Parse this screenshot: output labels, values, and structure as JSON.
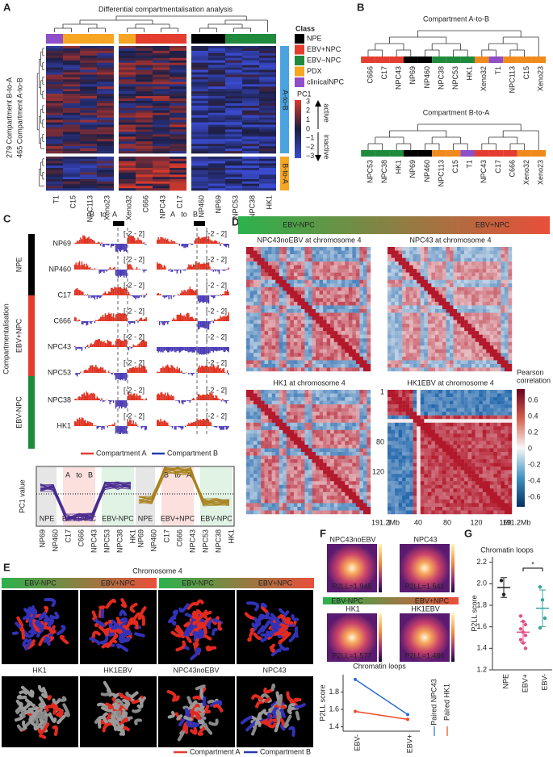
{
  "panel_labels": [
    "A",
    "B",
    "C",
    "D",
    "E",
    "F",
    "G"
  ],
  "a": {
    "title": "Differential compartmentalisation analysis",
    "row_groups": [
      "279 Compartment B-to-A",
      "465 Compartment A-to-B"
    ],
    "columns": [
      "T1",
      "C15",
      "NPC113",
      "Xeno23",
      "Xeno32",
      "C666",
      "NPC43",
      "C17",
      "NP460",
      "NP69",
      "NPC53",
      "NPC38",
      "HK1"
    ],
    "right_labels": [
      "A-to-B",
      "B-to-A"
    ],
    "legend_title": "Class",
    "classes": [
      {
        "name": "NPE",
        "color": "#000000"
      },
      {
        "name": "EBV+NPC",
        "color": "#e43d2f"
      },
      {
        "name": "EBV−NPC",
        "color": "#1f8a3c"
      },
      {
        "name": "PDX",
        "color": "#f6a623"
      },
      {
        "name": "clinicalNPC",
        "color": "#8e4fc8"
      }
    ],
    "pc1_title": "PC1",
    "pc1_ticks": [
      "3",
      "2",
      "1",
      "0",
      "−1",
      "−2",
      "−3"
    ],
    "active": "active",
    "inactive": "inactive"
  },
  "b": {
    "trees": [
      {
        "title": "Compartment A-to-B",
        "leaves": [
          {
            "name": "C666",
            "color": "#e43d2f"
          },
          {
            "name": "C17",
            "color": "#e43d2f"
          },
          {
            "name": "NPC43",
            "color": "#e43d2f"
          },
          {
            "name": "NP69",
            "color": "#000000"
          },
          {
            "name": "NP460",
            "color": "#000000"
          },
          {
            "name": "NPC38",
            "color": "#1f8a3c"
          },
          {
            "name": "NPC53",
            "color": "#1f8a3c"
          },
          {
            "name": "HK1",
            "color": "#1f8a3c"
          },
          {
            "name": "Xeno32",
            "color": "#f08a1c"
          },
          {
            "name": "T1",
            "color": "#8e4fc8"
          },
          {
            "name": "NPC113",
            "color": "#f08a1c"
          },
          {
            "name": "C15",
            "color": "#f08a1c"
          },
          {
            "name": "Xeno23",
            "color": "#f08a1c"
          }
        ]
      },
      {
        "title": "Compartment B-to-A",
        "leaves": [
          {
            "name": "NPC53",
            "color": "#1f8a3c"
          },
          {
            "name": "NPC38",
            "color": "#1f8a3c"
          },
          {
            "name": "HK1",
            "color": "#1f8a3c"
          },
          {
            "name": "NP69",
            "color": "#000000"
          },
          {
            "name": "NP460",
            "color": "#000000"
          },
          {
            "name": "NPC113",
            "color": "#f08a1c"
          },
          {
            "name": "C15",
            "color": "#f08a1c"
          },
          {
            "name": "T1",
            "color": "#8e4fc8"
          },
          {
            "name": "NPC43",
            "color": "#e43d2f"
          },
          {
            "name": "C17",
            "color": "#e43d2f"
          },
          {
            "name": "C666",
            "color": "#e43d2f"
          },
          {
            "name": "Xeno32",
            "color": "#f08a1c"
          },
          {
            "name": "Xeno23",
            "color": "#f08a1c"
          }
        ]
      }
    ]
  },
  "c": {
    "y_title": "Compartmentalisation",
    "groups": [
      "NPE",
      "EBV+NPC",
      "EBV-NPC"
    ],
    "tracks": [
      "NP69",
      "NP460",
      "C17",
      "C666",
      "NPC43",
      "NPC53",
      "NPC38",
      "HK1"
    ],
    "track_scale": "[-2 - 2]",
    "windows": [
      [
        "B",
        "to",
        "A"
      ],
      [
        "A",
        "to",
        "B"
      ]
    ],
    "legend": [
      "Compartment A",
      "Compartment B"
    ],
    "lower": {
      "y_title": "PC1 value",
      "windows": [
        [
          "A",
          "to",
          "B"
        ],
        [
          "B",
          "to",
          "A"
        ]
      ],
      "regions": [
        "NPE",
        "EBV+NPC",
        "EBV-NPC"
      ],
      "x": [
        "NP69",
        "NP460",
        "C17",
        "C666",
        "NPC43",
        "NPC53",
        "NPC38",
        "HK1"
      ]
    }
  },
  "d": {
    "header": [
      "EBV-NPC",
      "EBV+NPC"
    ],
    "maps": [
      "NPC43noEBV at chromosome 4",
      "NPC43 at chromosome 4",
      "HK1 at chromosome 4",
      "HK1EBV at chromosome 4"
    ],
    "x_ticks": [
      "1",
      "40",
      "80",
      "120",
      "160",
      "191.2Mb"
    ],
    "y_ticks": [
      "1",
      "80",
      "120"
    ],
    "colorbar_title": [
      "Pearson",
      "correlation"
    ],
    "colorbar_ticks": [
      "0.6",
      "0.4",
      "0.2",
      "0",
      "-0.2",
      "-0.4",
      "-0.6"
    ]
  },
  "e": {
    "title": "Chromosome 4",
    "header": [
      "EBV-NPC",
      "EBV+NPC"
    ],
    "labels": [
      "HK1",
      "HK1EBV",
      "NPC43noEBV",
      "NPC43"
    ],
    "legend": [
      "Compartment A",
      "Compartment B"
    ]
  },
  "f": {
    "maps": [
      {
        "name": "NPC43noEBV",
        "score": "P2LL=1.945"
      },
      {
        "name": "NPC43",
        "score": "P2LL=1.541"
      },
      {
        "name": "HK1",
        "score": "P2LL=1.577"
      },
      {
        "name": "HK1EBV",
        "score": "P2LL=1.486"
      }
    ],
    "header": [
      "EBV-NPC",
      "EBV+NPC"
    ],
    "loops": {
      "title": "Chromatin loops",
      "ylabel": "P2LL score",
      "ylim": [
        1.35,
        2.0
      ],
      "yticks": [
        1.4,
        1.6,
        1.8
      ],
      "categories": [
        "EBV-",
        "EBV+"
      ],
      "series": [
        {
          "name": "Paired NPC43",
          "color": "#2b6fd6",
          "values": [
            1.945,
            1.541
          ]
        },
        {
          "name": "Paired HK1",
          "color": "#ef4b2a",
          "values": [
            1.577,
            1.486
          ]
        }
      ]
    }
  },
  "g": {
    "title": "Chromatin loops",
    "ylabel": "P2LL score",
    "ylim": [
      1.2,
      2.25
    ],
    "yticks": [
      1.2,
      1.4,
      1.6,
      1.8,
      {
        "value": 2.0,
        "label": "2.0"
      },
      2.2
    ],
    "categories": [
      "NPE",
      "EBV+",
      "EBV-"
    ],
    "colors": [
      "#222222",
      "#e0508a",
      "#35a59c"
    ],
    "values": [
      [
        2.03,
        1.9
      ],
      [
        1.7,
        1.65,
        1.62,
        1.58,
        1.55,
        1.52,
        1.48,
        1.45,
        1.4
      ],
      [
        1.97,
        1.85,
        1.68,
        1.59
      ]
    ],
    "annotation": "*"
  }
}
